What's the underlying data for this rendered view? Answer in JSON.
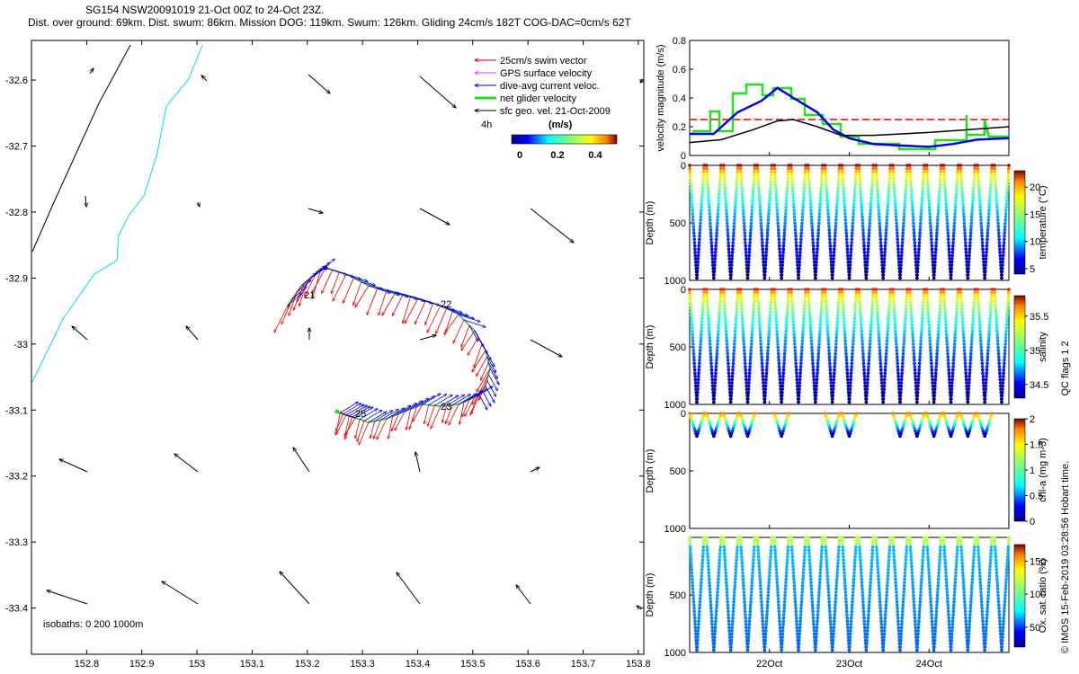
{
  "header": {
    "line1": "SG154 NSW20091019 21-Oct 00Z to 24-Oct 23Z.",
    "line2": "Dist. over ground: 69km. Dist. swum: 86km. Mission DOG: 119km. Swum: 126km. Gliding 24cm/s 182T COG-DAC=0cm/s 62T"
  },
  "legend": {
    "items": [
      {
        "label": "25cm/s swim vector",
        "color": "#e00000"
      },
      {
        "label": "GPS surface velocity",
        "color": "#e040e0"
      },
      {
        "label": "dive-avg current veloc.",
        "color": "#0000e0"
      },
      {
        "label": "net glider velocity",
        "color": "#20e020"
      },
      {
        "label": "sfc geo. vel. 21-Oct-2009",
        "color": "#000000"
      }
    ],
    "time_label": "4h",
    "colorbar_label": "(m/s)",
    "colorbar_ticks": [
      "0",
      "0.2",
      "0.4"
    ]
  },
  "map": {
    "isobaths": "isobaths: 0   200   1000m",
    "track_labels": [
      "21",
      "22",
      "23",
      "25"
    ],
    "chart_data": {
      "type": "map-vector",
      "x_ticks": [
        "152.8",
        "152.9",
        "153",
        "153.1",
        "153.2",
        "153.3",
        "153.4",
        "153.5",
        "153.6",
        "153.7",
        "153.8"
      ],
      "y_ticks": [
        "-32.6",
        "-32.7",
        "-32.8",
        "-32.9",
        "-33",
        "-33.1",
        "-33.2",
        "-33.3",
        "-33.4"
      ],
      "xlim": [
        152.7,
        153.81
      ],
      "ylim": [
        -33.47,
        -32.54
      ]
    }
  },
  "velocity_panel": {
    "chart_data": {
      "type": "line",
      "ylabel": "velocity magnitude (m/s)",
      "y_ticks": [
        "0",
        "0.2",
        "0.4",
        "0.6",
        "0.8"
      ],
      "ylim": [
        0,
        0.8
      ],
      "xlim": [
        21,
        25
      ],
      "reference_line": 0.25,
      "series": [
        {
          "name": "dive-avg current",
          "color": "#0000e0",
          "x": [
            21.0,
            21.3,
            21.6,
            21.9,
            22.1,
            22.3,
            22.6,
            22.8,
            23.0,
            23.3,
            23.6,
            24.0,
            24.3,
            24.6,
            25.0
          ],
          "values": [
            0.15,
            0.15,
            0.3,
            0.38,
            0.47,
            0.4,
            0.3,
            0.18,
            0.12,
            0.08,
            0.07,
            0.06,
            0.08,
            0.11,
            0.12
          ]
        },
        {
          "name": "sfc geostrophic",
          "color": "#000000",
          "x": [
            21.0,
            21.4,
            21.8,
            22.1,
            22.3,
            22.6,
            22.9,
            23.3,
            24.0,
            24.5,
            25.0
          ],
          "values": [
            0.09,
            0.11,
            0.18,
            0.24,
            0.25,
            0.2,
            0.14,
            0.14,
            0.16,
            0.18,
            0.2
          ]
        }
      ]
    }
  },
  "temp_panel": {
    "ylabel": "Depth (m)",
    "y_ticks": [
      "0",
      "500",
      "1000"
    ],
    "cbar_label": "temperature (°C)",
    "cbar_ticks": [
      "20",
      "15",
      "10",
      "5"
    ],
    "chart_data": {
      "type": "scatter",
      "variable": "temperature",
      "ylim": [
        0,
        1000
      ],
      "clim": [
        4,
        23
      ]
    }
  },
  "sal_panel": {
    "ylabel": "Depth (m)",
    "y_ticks": [
      "0",
      "500",
      "1000"
    ],
    "cbar_label": "salinity",
    "cbar_ticks": [
      "35.5",
      "35",
      "34.5"
    ],
    "chart_data": {
      "type": "scatter",
      "variable": "salinity",
      "ylim": [
        0,
        1000
      ],
      "clim": [
        34.3,
        35.8
      ]
    }
  },
  "chl_panel": {
    "ylabel": "Depth (m)",
    "y_ticks": [
      "0",
      "500",
      "1000"
    ],
    "cbar_label": "chl-a (mg m-3)",
    "cbar_ticks": [
      "2",
      "1.5",
      "1",
      "0.5",
      "0"
    ],
    "chart_data": {
      "type": "scatter",
      "variable": "chlorophyll",
      "ylim": [
        0,
        1000
      ],
      "clim": [
        0,
        2
      ]
    }
  },
  "oxy_panel": {
    "ylabel": "Depth (m)",
    "y_ticks": [
      "500",
      "1000"
    ],
    "cbar_label": "Ox. sat. ratio (%)",
    "cbar_ticks": [
      "150",
      "100",
      "50"
    ],
    "x_ticks": [
      "22Oct",
      "23Oct",
      "24Oct"
    ],
    "chart_data": {
      "type": "scatter",
      "variable": "oxygen saturation",
      "ylim": [
        0,
        1000
      ],
      "clim": [
        20,
        175
      ],
      "xlim": [
        21,
        25
      ]
    }
  },
  "footer": {
    "qc_flags": "QC flags 1  2",
    "copyright": "© IMOS 15-Feb-2019 03:28:56 Hobart time."
  }
}
